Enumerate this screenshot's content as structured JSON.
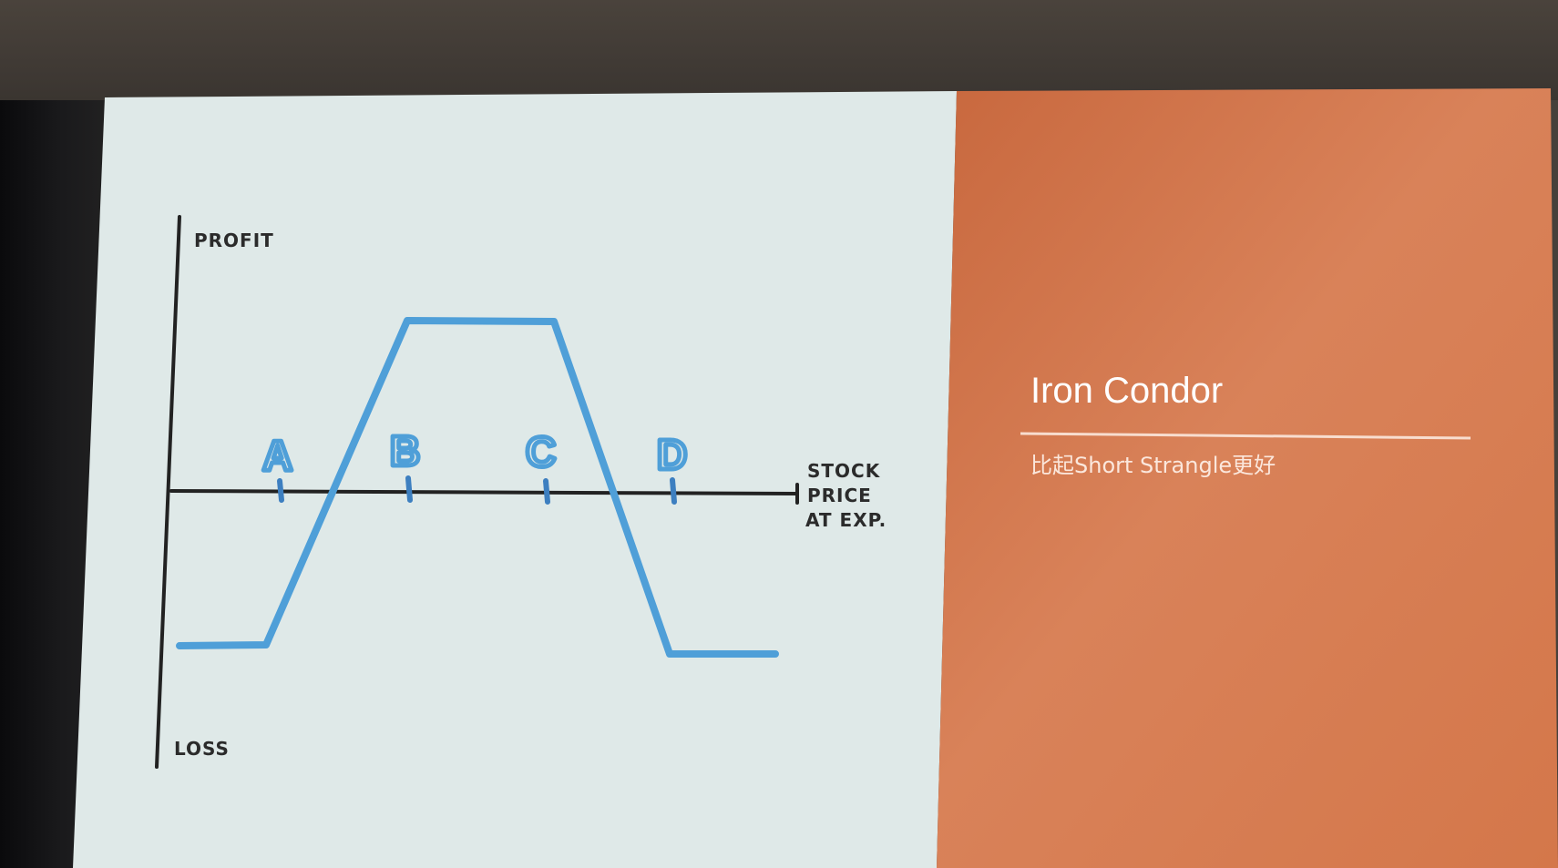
{
  "slide": {
    "title": "Iron Condor",
    "subtitle": "比起Short Strangle更好",
    "diagram": {
      "profit_label": "PROFIT",
      "loss_label": "LOSS",
      "x_axis_label_line1": "STOCK",
      "x_axis_label_line2": "PRICE",
      "x_axis_label_line3": "AT EXP.",
      "strike_labels": [
        "A",
        "B",
        "C",
        "D"
      ]
    }
  },
  "colors": {
    "slide_background_left": "#dfe9e8",
    "slide_background_right": "#d67a4e",
    "payoff_line": "#4f9fd8",
    "axis_line": "#222222"
  }
}
